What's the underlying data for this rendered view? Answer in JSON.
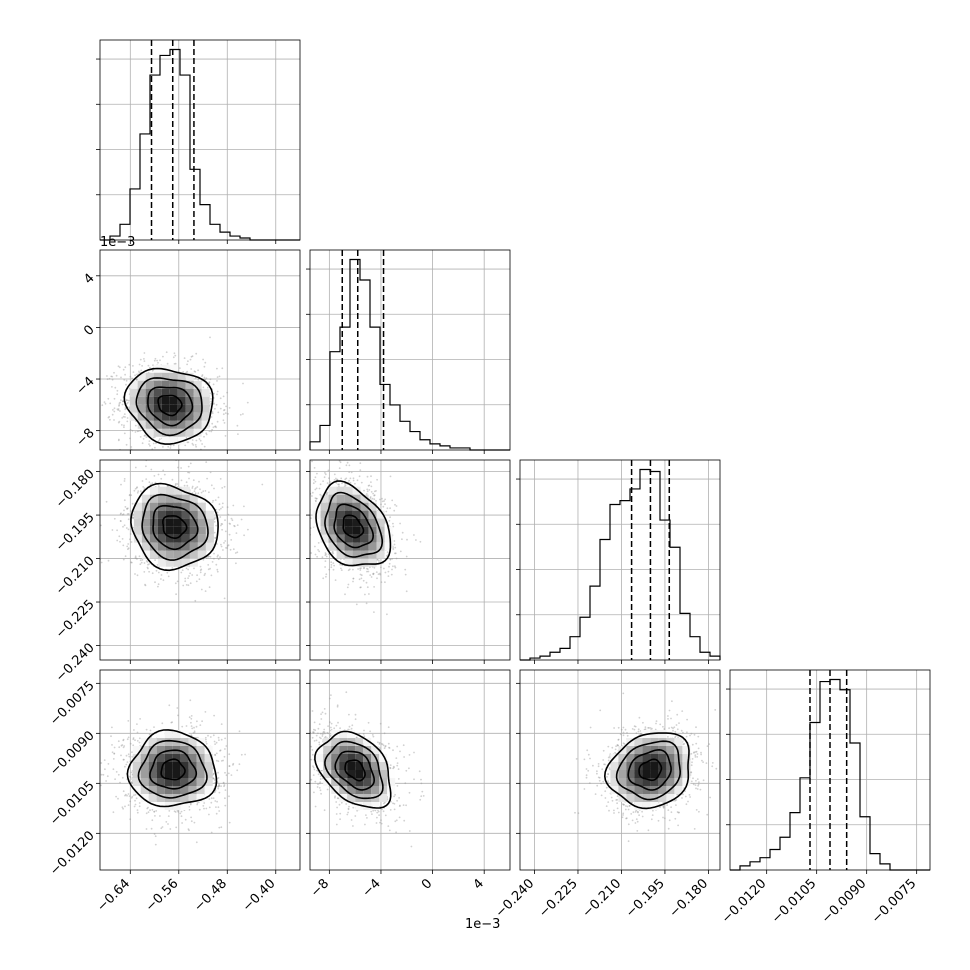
{
  "chart_data": {
    "type": "scatter",
    "subtype": "corner-plot",
    "grid": true,
    "parameters": [
      {
        "index": 0,
        "range": [
          -0.69,
          -0.36
        ],
        "ticks": [
          -0.64,
          -0.56,
          -0.48,
          -0.4
        ],
        "tick_labels": [
          "−0.64",
          "−0.56",
          "−0.48",
          "−0.40"
        ],
        "offset_label": "",
        "center": -0.57,
        "spread": 0.035,
        "quantiles": [
          -0.605,
          -0.57,
          -0.535
        ],
        "hist": {
          "edges": [
            -0.69,
            -0.6735,
            -0.657,
            -0.6405,
            -0.624,
            -0.6075,
            -0.591,
            -0.5745,
            -0.558,
            -0.5415,
            -0.525,
            -0.5085,
            -0.492,
            -0.4755,
            -0.459,
            -0.4425,
            -0.426,
            -0.4095,
            -0.393,
            -0.3765,
            -0.36
          ],
          "counts": [
            0,
            2,
            8,
            26,
            54,
            84,
            94,
            97,
            84,
            36,
            18,
            8,
            4,
            2,
            1,
            0,
            0,
            0,
            0,
            0
          ]
        }
      },
      {
        "index": 1,
        "range": [
          -9.5,
          6.0
        ],
        "ticks": [
          -8,
          -4,
          0,
          4
        ],
        "tick_labels": [
          "−8",
          "−4",
          "0",
          "4"
        ],
        "offset_label": "1e−3",
        "center": -6.0,
        "spread": 1.4,
        "quantiles": [
          -7.0,
          -5.8,
          -3.8
        ],
        "hist": {
          "edges": [
            -9.5,
            -8.725,
            -7.95,
            -7.175,
            -6.4,
            -5.625,
            -4.85,
            -4.075,
            -3.3,
            -2.525,
            -1.75,
            -0.975,
            -0.2,
            0.575,
            1.35,
            2.125,
            2.9,
            3.675,
            4.45,
            5.225,
            6.0
          ],
          "counts": [
            4,
            12,
            48,
            60,
            93,
            83,
            60,
            32,
            22,
            14,
            9,
            5,
            3,
            2,
            1,
            1,
            0,
            0,
            0,
            0
          ]
        }
      },
      {
        "index": 2,
        "range": [
          -0.245,
          -0.176
        ],
        "ticks": [
          -0.24,
          -0.225,
          -0.21,
          -0.195,
          -0.18
        ],
        "tick_labels": [
          "−0.240",
          "−0.225",
          "−0.210",
          "−0.195",
          "−0.180"
        ],
        "offset_label": "",
        "center": -0.2,
        "spread": 0.007,
        "quantiles": [
          -0.2065,
          -0.2,
          -0.1935
        ],
        "hist": {
          "edges": [
            -0.245,
            -0.24155,
            -0.2381,
            -0.23465,
            -0.2312,
            -0.22775,
            -0.2243,
            -0.22085,
            -0.2174,
            -0.21395,
            -0.2105,
            -0.20705,
            -0.2036,
            -0.20015,
            -0.1967,
            -0.19325,
            -0.1898,
            -0.18635,
            -0.1829,
            -0.17945,
            -0.176
          ],
          "counts": [
            0,
            1,
            2,
            4,
            6,
            12,
            22,
            38,
            62,
            80,
            82,
            88,
            98,
            97,
            72,
            58,
            24,
            12,
            4,
            2
          ]
        }
      },
      {
        "index": 3,
        "range": [
          -0.0131,
          -0.0071
        ],
        "ticks": [
          -0.012,
          -0.0105,
          -0.009,
          -0.0075
        ],
        "tick_labels": [
          "−0.0120",
          "−0.0105",
          "−0.0090",
          "−0.0075"
        ],
        "offset_label": "",
        "center": -0.0101,
        "spread": 0.00055,
        "quantiles": [
          -0.0107,
          -0.0101,
          -0.0096
        ],
        "hist": {
          "edges": [
            -0.0131,
            -0.0128,
            -0.0125,
            -0.0122,
            -0.0119,
            -0.0116,
            -0.0113,
            -0.011,
            -0.0107,
            -0.0104,
            -0.0101,
            -0.0098,
            -0.0095,
            -0.0092,
            -0.0089,
            -0.0086,
            -0.0083,
            -0.008,
            -0.0077,
            -0.0074,
            -0.0071
          ],
          "counts": [
            0,
            2,
            4,
            6,
            10,
            16,
            28,
            45,
            72,
            92,
            93,
            88,
            62,
            26,
            8,
            3,
            0,
            0,
            0,
            0
          ]
        }
      }
    ],
    "pairs": [
      {
        "x": 0,
        "y": 1,
        "center": [
          -0.575,
          -6.0
        ],
        "correlation": -0.1
      },
      {
        "x": 0,
        "y": 2,
        "center": [
          -0.568,
          -0.199
        ],
        "correlation": -0.1
      },
      {
        "x": 1,
        "y": 2,
        "center": [
          -6.2,
          -0.199
        ],
        "correlation": -0.3
      },
      {
        "x": 0,
        "y": 3,
        "center": [
          -0.57,
          -0.0101
        ],
        "correlation": 0.0
      },
      {
        "x": 1,
        "y": 3,
        "center": [
          -6.0,
          -0.0101
        ],
        "correlation": -0.35
      },
      {
        "x": 2,
        "y": 3,
        "center": [
          -0.2,
          -0.0101
        ],
        "correlation": 0.15
      }
    ],
    "offset_labels": {
      "row1_y": "1e−3",
      "col1_x": "1e−3"
    }
  }
}
